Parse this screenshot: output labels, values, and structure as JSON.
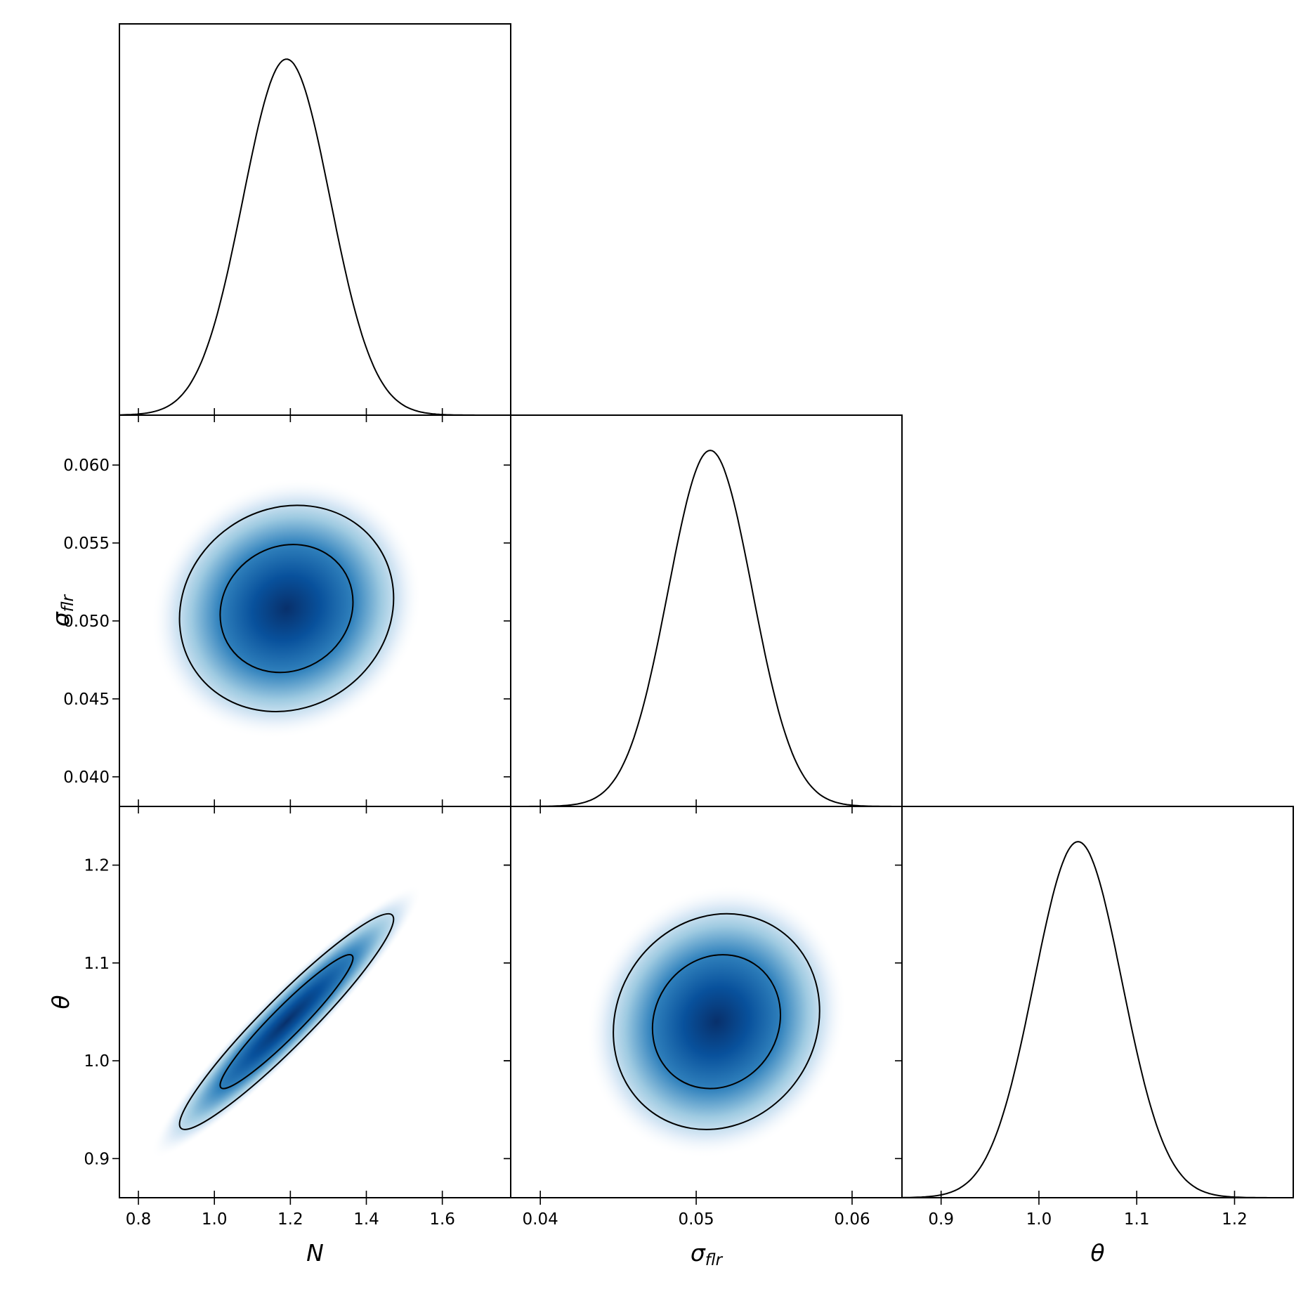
{
  "chart_data": {
    "type": "corner",
    "parameters": [
      {
        "key": "N",
        "label": "N",
        "sub": "",
        "range": [
          0.75,
          1.78
        ],
        "ticks": [
          "0.8",
          "1.0",
          "1.2",
          "1.4",
          "1.6"
        ],
        "mean": 1.19,
        "sd": 0.115
      },
      {
        "key": "sigma_flr",
        "label": "σ",
        "sub": "flr",
        "range": [
          0.0381,
          0.0632
        ],
        "ticks": [
          "0.040",
          "0.045",
          "0.050",
          "0.055",
          "0.060"
        ],
        "bottom_ticks": [
          "0.04",
          "0.05",
          "0.06"
        ],
        "mean": 0.0509,
        "sd": 0.0027
      },
      {
        "key": "theta",
        "label": "θ",
        "sub": "",
        "range": [
          0.86,
          1.26
        ],
        "ticks": [
          "0.9",
          "1.0",
          "1.1",
          "1.2"
        ],
        "mean": 1.04,
        "sd": 0.045
      }
    ],
    "pairs": [
      {
        "x": "N",
        "y": "sigma_flr",
        "x_center": 1.19,
        "y_center": 0.0508,
        "correlation": 0.1,
        "contour_levels": [
          "68%",
          "95%"
        ]
      },
      {
        "x": "N",
        "y": "theta",
        "x_center": 1.19,
        "y_center": 1.04,
        "correlation": 0.95,
        "contour_levels": [
          "68%",
          "95%"
        ]
      },
      {
        "x": "sigma_flr",
        "y": "theta",
        "x_center": 0.0513,
        "y_center": 1.04,
        "correlation": 0.1,
        "contour_levels": [
          "68%",
          "95%"
        ]
      }
    ],
    "colors": {
      "density": "#08306b",
      "density_light": "#f7fbff",
      "line": "#000000"
    },
    "grid": false
  }
}
